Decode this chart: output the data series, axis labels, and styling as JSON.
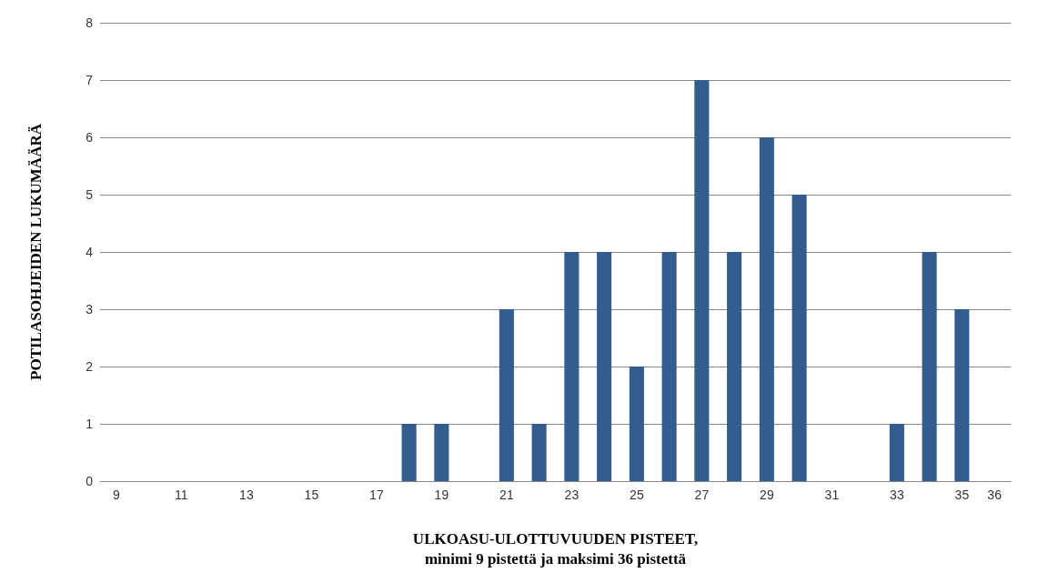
{
  "chart_data": {
    "type": "bar",
    "xlabel": "ULKOASU-ULOTTUVUUDEN PISTEET,\nminimi 9 pistettä ja maksimi 36 pistettä",
    "ylabel": "POTILASOHJEIDEN LUKUMÄÄRÄ",
    "categories": [
      "9",
      null,
      "11",
      null,
      "13",
      null,
      "15",
      null,
      "17",
      null,
      "19",
      null,
      "21",
      null,
      "23",
      null,
      "25",
      null,
      "27",
      null,
      "29",
      null,
      "31",
      null,
      "33",
      null,
      "35",
      "36"
    ],
    "values": [
      0,
      0,
      0,
      0,
      0,
      0,
      0,
      0,
      0,
      1,
      1,
      0,
      3,
      1,
      4,
      4,
      2,
      4,
      7,
      4,
      6,
      5,
      0,
      0,
      1,
      4,
      3,
      0
    ],
    "color": "#335d8f",
    "ylim": [
      0,
      8
    ],
    "yticks": [
      0,
      1,
      2,
      3,
      4,
      5,
      6,
      7,
      8
    ],
    "grid": "y"
  }
}
